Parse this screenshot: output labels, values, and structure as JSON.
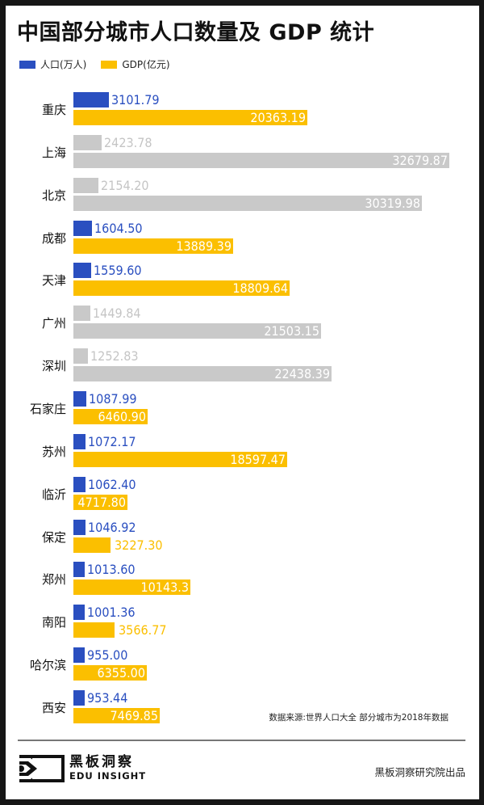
{
  "title": "中国部分城市人口数量及 GDP 统计",
  "legend": [
    {
      "label": "人口(万人)",
      "color": "#2a4fc0"
    },
    {
      "label": "GDP(亿元)",
      "color": "#fbbf00"
    }
  ],
  "colors": {
    "population": "#2a4fc0",
    "gdp": "#fbbf00",
    "muted_bar": "#c9c9c9",
    "muted_text": "#c5c5c5"
  },
  "source": "数据来源:世界人口大全 部分城市为2018年数据",
  "brand": {
    "cn": "黑板洞察",
    "en": "EDU INSIGHT"
  },
  "credit": "黑板洞察研究院出品",
  "chart_data": {
    "type": "bar",
    "orientation": "horizontal",
    "title": "中国部分城市人口数量及 GDP 统计",
    "xlabel": "",
    "ylabel": "",
    "legend_position": "top-left",
    "grid": false,
    "categories": [
      "重庆",
      "上海",
      "北京",
      "成都",
      "天津",
      "广州",
      "深圳",
      "石家庄",
      "苏州",
      "临沂",
      "保定",
      "郑州",
      "南阳",
      "哈尔滨",
      "西安"
    ],
    "series": [
      {
        "name": "人口(万人)",
        "values": [
          3101.79,
          2423.78,
          2154.2,
          1604.5,
          1559.6,
          1449.84,
          1252.83,
          1087.99,
          1072.17,
          1062.4,
          1046.92,
          1013.6,
          1001.36,
          955.0,
          953.44
        ]
      },
      {
        "name": "GDP(亿元)",
        "values": [
          20363.19,
          32679.87,
          30319.98,
          13889.39,
          18809.64,
          21503.15,
          22438.39,
          6460.9,
          18597.47,
          4717.8,
          3227.3,
          10143.3,
          3566.77,
          6355.0,
          7469.85
        ]
      }
    ],
    "labels": {
      "population": [
        "3101.79",
        "2423.78",
        "2154.20",
        "1604.50",
        "1559.60",
        "1449.84",
        "1252.83",
        "1087.99",
        "1072.17",
        "1062.40",
        "1046.92",
        "1013.60",
        "1001.36",
        "955.00",
        "953.44"
      ],
      "gdp": [
        "20363.19",
        "32679.87",
        "30319.98",
        "13889.39",
        "18809.64",
        "21503.15",
        "22438.39",
        "6460.90",
        "18597.47",
        "4717.80",
        "3227.30",
        "10143.3",
        "3566.77",
        "6355.00",
        "7469.85"
      ]
    },
    "muted_categories": [
      "上海",
      "北京",
      "广州",
      "深圳"
    ],
    "annotations": [
      "数据来源:世界人口大全 部分城市为2018年数据"
    ]
  }
}
